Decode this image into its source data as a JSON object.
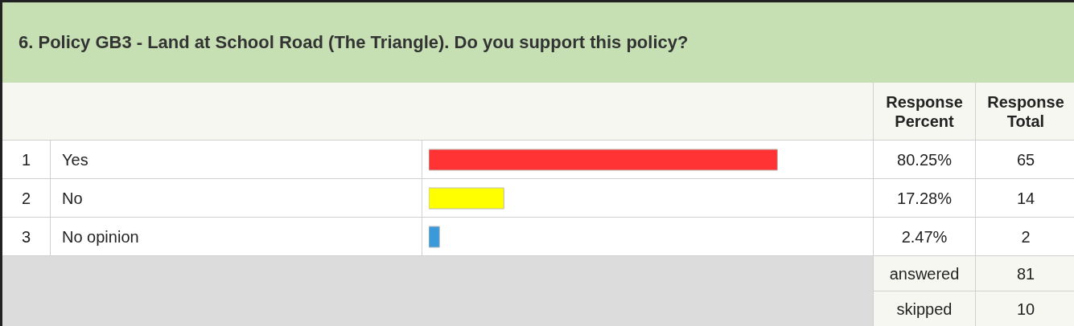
{
  "chart_data": {
    "type": "bar",
    "orientation": "horizontal",
    "title": "6. Policy GB3 - Land at School Road (The Triangle). Do you support this policy?",
    "categories": [
      "Yes",
      "No",
      "No opinion"
    ],
    "values": [
      80.25,
      17.28,
      2.47
    ],
    "colors": [
      "#ff3333",
      "#ffff00",
      "#3a9ad9"
    ],
    "value_labels": [
      "80.25%",
      "17.28%",
      "2.47%"
    ],
    "tick_labels": false,
    "annotations": [
      "Response Percent",
      "Response Total",
      "1",
      "65",
      "2",
      "14",
      "3",
      "2",
      "answered",
      "81",
      "skipped",
      "10"
    ]
  }
}
